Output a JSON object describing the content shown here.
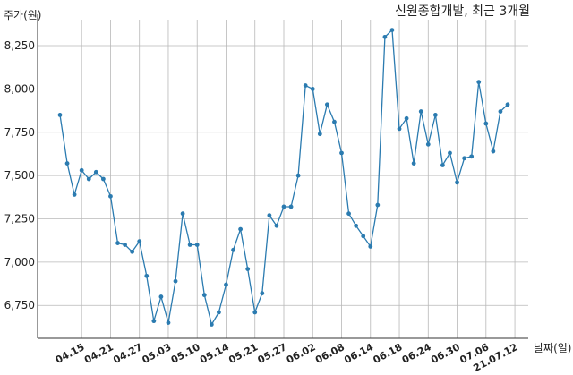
{
  "chart_data": {
    "type": "line",
    "title": "신원종합개발, 최근 3개월",
    "xlabel": "날짜(일)",
    "ylabel": "주가(원)",
    "grid": true,
    "line_color": "#2b7bb0",
    "ylim": [
      6560,
      8400
    ],
    "yticks": [
      6750,
      7000,
      7250,
      7500,
      7750,
      8000,
      8250
    ],
    "ytick_labels": [
      "6,750",
      "7,000",
      "7,250",
      "7,500",
      "7,750",
      "8,000",
      "8,250"
    ],
    "xtick_labels": [
      "04.15",
      "04.21",
      "04.27",
      "05.03",
      "05.10",
      "05.14",
      "05.21",
      "05.27",
      "06.02",
      "06.08",
      "06.14",
      "06.18",
      "06.24",
      "06.30",
      "07.06",
      "21.07.12"
    ],
    "xtick_index": [
      3,
      7,
      11,
      15,
      19,
      23,
      27,
      31,
      35,
      39,
      43,
      47,
      51,
      55,
      59,
      63
    ],
    "values": [
      7850,
      7570,
      7390,
      7530,
      7480,
      7520,
      7480,
      7380,
      7110,
      7100,
      7060,
      7120,
      6920,
      6660,
      6800,
      6650,
      6890,
      7280,
      7100,
      7100,
      6810,
      6640,
      6710,
      6870,
      7070,
      7190,
      6960,
      6710,
      6820,
      7270,
      7210,
      7320,
      7320,
      7500,
      8020,
      8000,
      7740,
      7910,
      7810,
      7630,
      7280,
      7210,
      7150,
      7090,
      7330,
      8300,
      8340,
      7770,
      7830,
      7570,
      7870,
      7680,
      7850,
      7560,
      7630,
      7460,
      7600,
      7610,
      8040,
      7800,
      7640,
      7870,
      7910
    ]
  }
}
